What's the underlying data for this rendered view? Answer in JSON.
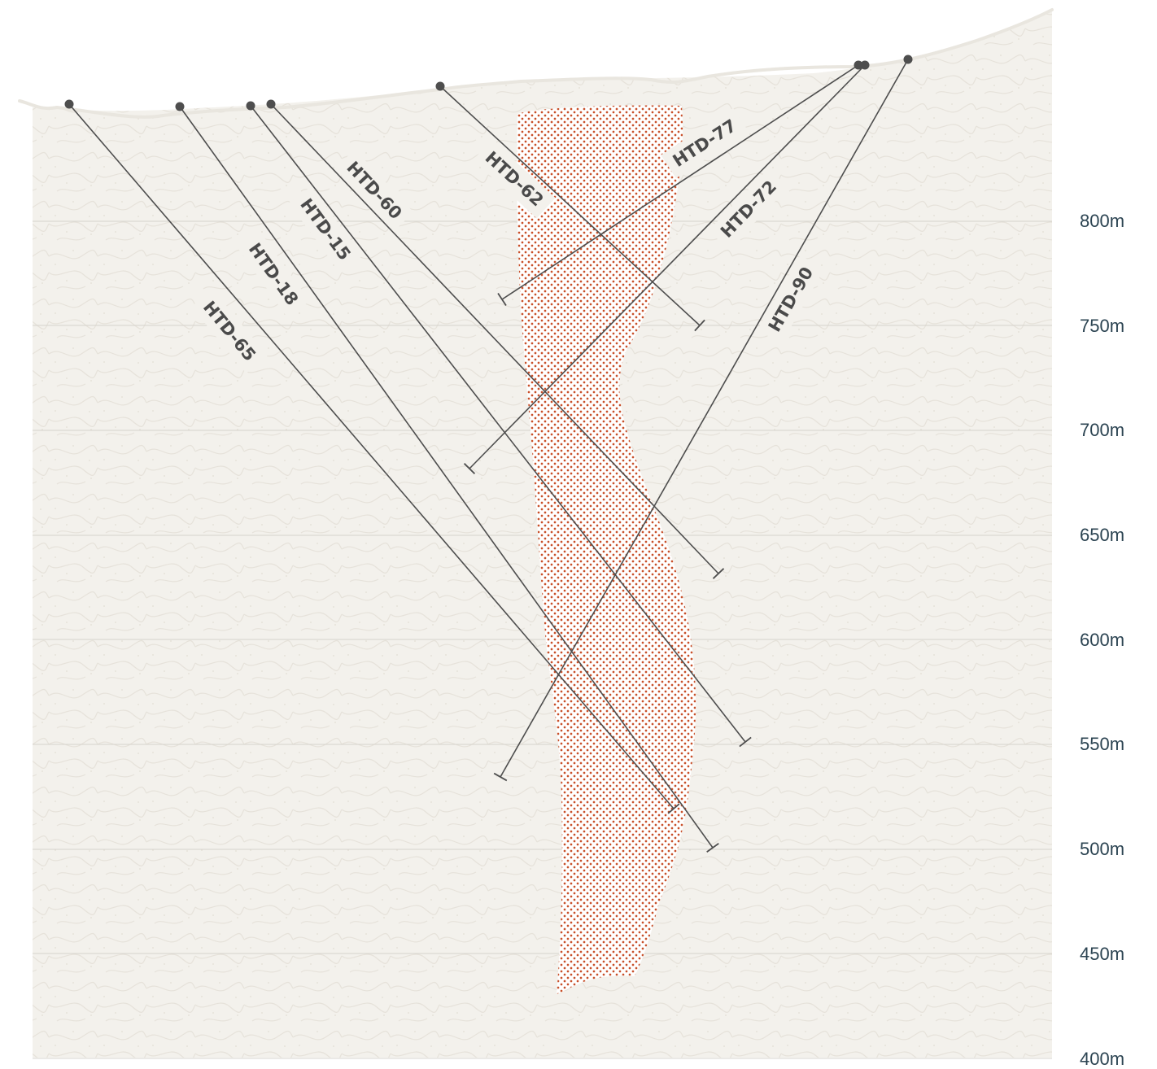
{
  "colors": {
    "rock": "#f3f1ec",
    "rock_pattern": "#e6e2da",
    "orebody": "#c8502a",
    "trace": "#4e4e4e",
    "elev_text": "#2c4452",
    "surface": "#e9e6df"
  },
  "elevation_labels": [
    "800m",
    "750m",
    "700m",
    "650m",
    "600m",
    "550m",
    "500m",
    "450m",
    "400m"
  ],
  "drill_holes": [
    {
      "id": "HTD-65",
      "label": "HTD-65"
    },
    {
      "id": "HTD-18",
      "label": "HTD-18"
    },
    {
      "id": "HTD-15",
      "label": "HTD-15"
    },
    {
      "id": "HTD-60",
      "label": "HTD-60"
    },
    {
      "id": "HTD-62",
      "label": "HTD-62"
    },
    {
      "id": "HTD-77",
      "label": "HTD-77"
    },
    {
      "id": "HTD-72",
      "label": "HTD-72"
    },
    {
      "id": "HTD-90",
      "label": "HTD-90"
    }
  ]
}
